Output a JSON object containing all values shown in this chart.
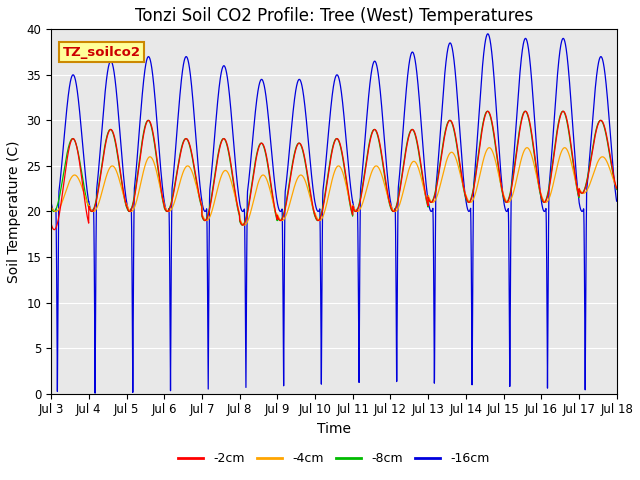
{
  "title": "Tonzi Soil CO2 Profile: Tree (West) Temperatures",
  "xlabel": "Time",
  "ylabel": "Soil Temperature (C)",
  "ylim": [
    0,
    40
  ],
  "n_days": 15,
  "x_tick_labels": [
    "Jul 3",
    "Jul 4",
    "Jul 5",
    "Jul 6",
    "Jul 7",
    "Jul 8",
    "Jul 9",
    "Jul 10",
    "Jul 11",
    "Jul 12",
    "Jul 13",
    "Jul 14",
    "Jul 15",
    "Jul 16",
    "Jul 17",
    "Jul 18"
  ],
  "series_colors": [
    "#ff0000",
    "#ffa500",
    "#00bb00",
    "#0000dd"
  ],
  "series_labels": [
    "-2cm",
    "-4cm",
    "-8cm",
    "-16cm"
  ],
  "legend_box_label": "TZ_soilco2",
  "legend_box_facecolor": "#ffff99",
  "legend_box_edgecolor": "#cc8800",
  "plot_bg_color": "#e8e8e8",
  "title_fontsize": 12,
  "axis_label_fontsize": 10,
  "tick_fontsize": 8.5,
  "legend_fontsize": 9,
  "day_peaks_blue": [
    35,
    36.5,
    37,
    37,
    36,
    34.5,
    34.5,
    35,
    36.5,
    37.5,
    38.5,
    39.5,
    39,
    39,
    37
  ],
  "day_peaks_red": [
    28,
    29,
    30,
    28,
    28,
    27.5,
    27.5,
    28,
    29,
    29,
    30,
    31,
    31,
    31,
    30
  ],
  "day_peaks_green": [
    28,
    29,
    30,
    28,
    28,
    27.5,
    27.5,
    28,
    29,
    29,
    30,
    31,
    31,
    31,
    30
  ],
  "day_peaks_orange": [
    24,
    25,
    26,
    25,
    24.5,
    24,
    24,
    25,
    25,
    25.5,
    26.5,
    27,
    27,
    27,
    26
  ],
  "day_mins_red": [
    18,
    20,
    20,
    20,
    19,
    18.5,
    19,
    19,
    20,
    20,
    21,
    21,
    21,
    21,
    22
  ],
  "day_mins_green": [
    20,
    20,
    20,
    20,
    19,
    18.5,
    19,
    19,
    20,
    20,
    21,
    21,
    21,
    21,
    22
  ],
  "day_mins_orange": [
    20,
    20,
    20,
    20,
    19,
    18.5,
    19,
    19,
    20,
    20,
    21,
    21,
    21,
    21,
    22
  ],
  "pts_per_day": 288
}
